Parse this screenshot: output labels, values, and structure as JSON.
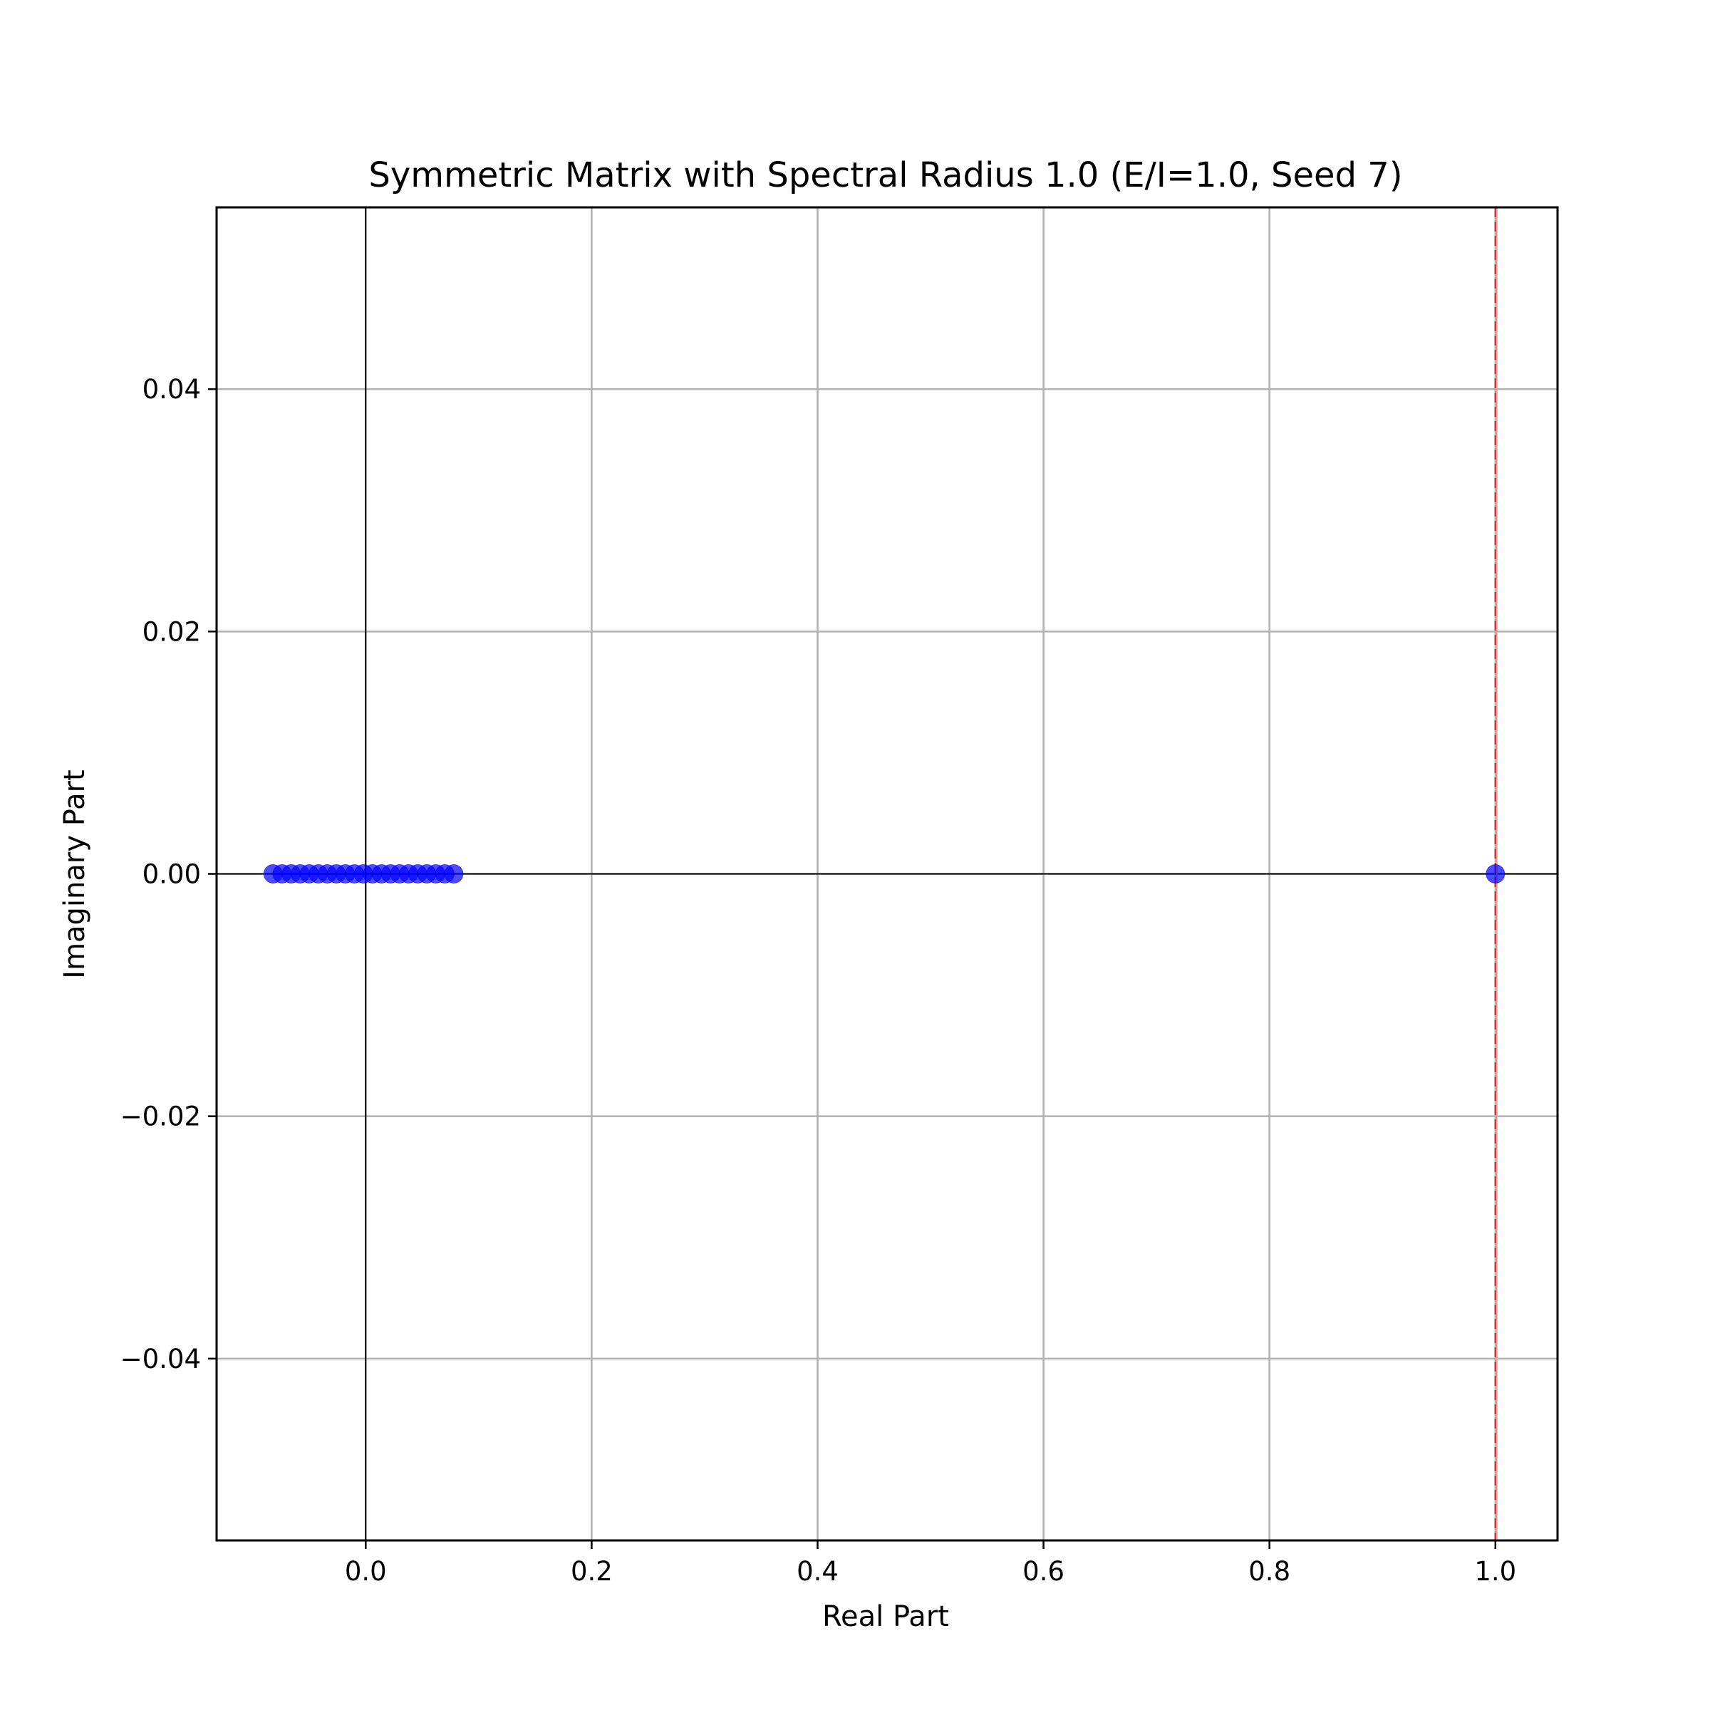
{
  "chart_data": {
    "type": "scatter",
    "title": "Symmetric Matrix with Spectral Radius 1.0 (E/I=1.0, Seed 7)",
    "xlabel": "Real Part",
    "ylabel": "Imaginary Part",
    "xlim": [
      -0.132,
      1.055
    ],
    "ylim": [
      -0.055,
      0.055
    ],
    "x_ticks": [
      0.0,
      0.2,
      0.4,
      0.6,
      0.8,
      1.0
    ],
    "x_tick_labels": [
      "0.0",
      "0.2",
      "0.4",
      "0.6",
      "0.8",
      "1.0"
    ],
    "y_ticks": [
      -0.04,
      -0.02,
      0.0,
      0.02,
      0.04
    ],
    "y_tick_labels": [
      "−0.04",
      "−0.02",
      "0.00",
      "0.02",
      "0.04"
    ],
    "grid": true,
    "reference_lines": {
      "x_zero": 0,
      "y_zero": 0,
      "spectral_radius_x": 1.0
    },
    "colors": {
      "points": "#0000ff",
      "reference_line": "#d62728",
      "axis_zero": "#000000",
      "grid": "#b0b0b0"
    },
    "series": [
      {
        "x": [
          -0.082,
          -0.074,
          -0.066,
          -0.058,
          -0.05,
          -0.042,
          -0.034,
          -0.026,
          -0.018,
          -0.01,
          -0.002,
          0.006,
          0.014,
          0.022,
          0.03,
          0.038,
          0.046,
          0.054,
          0.062,
          0.07,
          0.078,
          1.0
        ],
        "y": [
          0,
          0,
          0,
          0,
          0,
          0,
          0,
          0,
          0,
          0,
          0,
          0,
          0,
          0,
          0,
          0,
          0,
          0,
          0,
          0,
          0,
          0
        ]
      }
    ]
  }
}
